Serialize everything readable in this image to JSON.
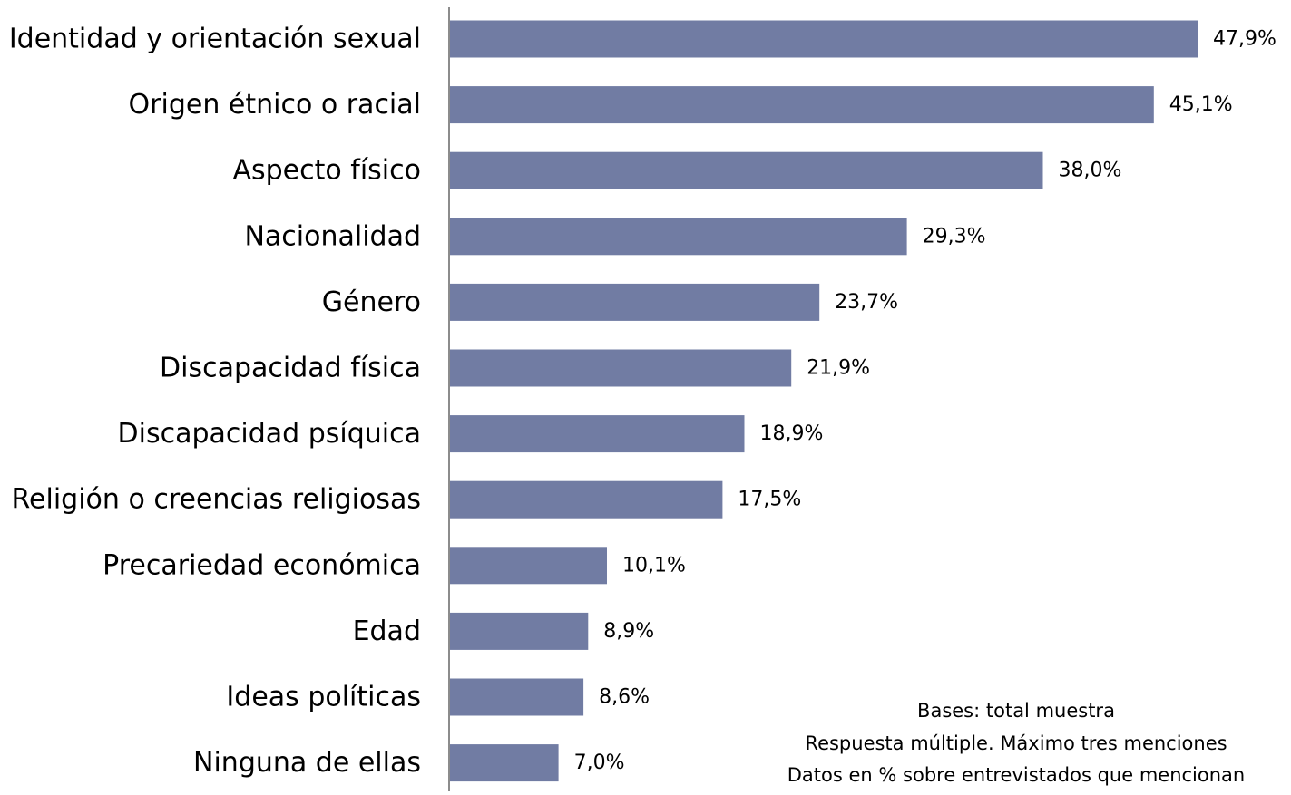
{
  "chart_data": {
    "type": "bar",
    "orientation": "horizontal",
    "categories": [
      "Identidad y orientación sexual",
      "Origen étnico o racial",
      "Aspecto físico",
      "Nacionalidad",
      "Género",
      "Discapacidad física",
      "Discapacidad psíquica",
      "Religión o creencias religiosas",
      "Precariedad económica",
      "Edad",
      "Ideas políticas",
      "Ninguna de ellas"
    ],
    "values": [
      47.9,
      45.1,
      38.0,
      29.3,
      23.7,
      21.9,
      18.9,
      17.5,
      10.1,
      8.9,
      8.6,
      7.0
    ],
    "value_labels": [
      "47,9%",
      "45,1%",
      "38,0%",
      "29,3%",
      "23,7%",
      "21,9%",
      "18,9%",
      "17,5%",
      "10,1%",
      "8,9%",
      "8,6%",
      "7,0%"
    ],
    "unit": "%",
    "bar_color": "#717ca3",
    "axis_color": "#8c8c8c",
    "grid": false,
    "legend": "none"
  },
  "notes": {
    "line1": "Bases: total muestra",
    "line2": "Respuesta múltiple. Máximo tres menciones",
    "line3": "Datos en % sobre entrevistados que mencionan"
  }
}
